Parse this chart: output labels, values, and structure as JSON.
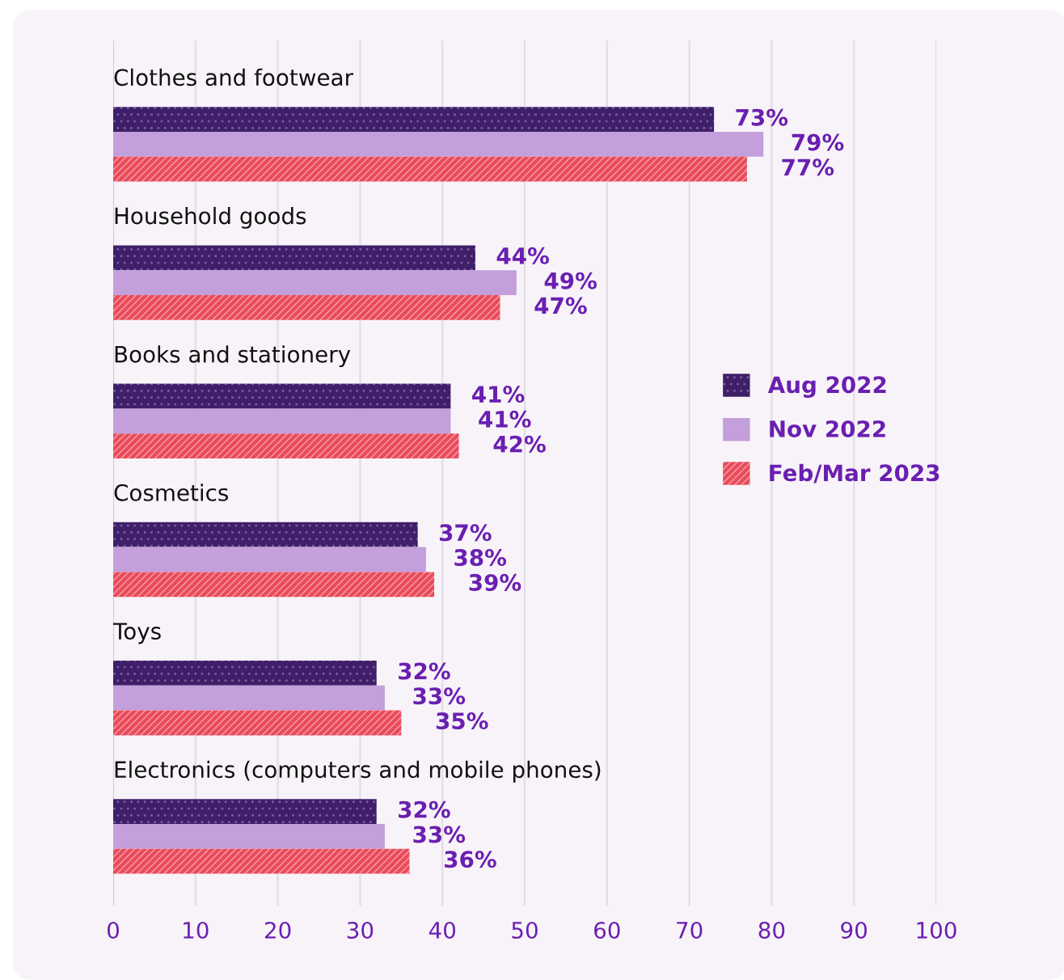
{
  "chart_data": {
    "type": "bar",
    "orientation": "horizontal",
    "categories": [
      "Clothes and footwear",
      "Household goods",
      "Books and stationery",
      "Cosmetics",
      "Toys",
      "Electronics (computers and mobile phones)"
    ],
    "series": [
      {
        "name": "Aug 2022",
        "color": "#3f1f69",
        "values": [
          73,
          44,
          41,
          37,
          32,
          32
        ],
        "value_labels": [
          "73%",
          "44%",
          "41%",
          "37%",
          "32%",
          "32%"
        ]
      },
      {
        "name": "Nov 2022",
        "color": "#c39fdb",
        "values": [
          79,
          49,
          41,
          38,
          33,
          33
        ],
        "value_labels": [
          "79%",
          "49%",
          "41%",
          "38%",
          "33%",
          "33%"
        ]
      },
      {
        "name": "Feb/Mar 2023",
        "color": "#e94b5a",
        "values": [
          77,
          47,
          42,
          39,
          35,
          36
        ],
        "value_labels": [
          "77%",
          "47%",
          "42%",
          "39%",
          "35%",
          "36%"
        ]
      }
    ],
    "xlim": [
      0,
      100
    ],
    "xticks": [
      0,
      10,
      20,
      30,
      40,
      50,
      60,
      70,
      80,
      90,
      100
    ],
    "grid": "x",
    "legend": "right",
    "tick_labels": "x"
  }
}
